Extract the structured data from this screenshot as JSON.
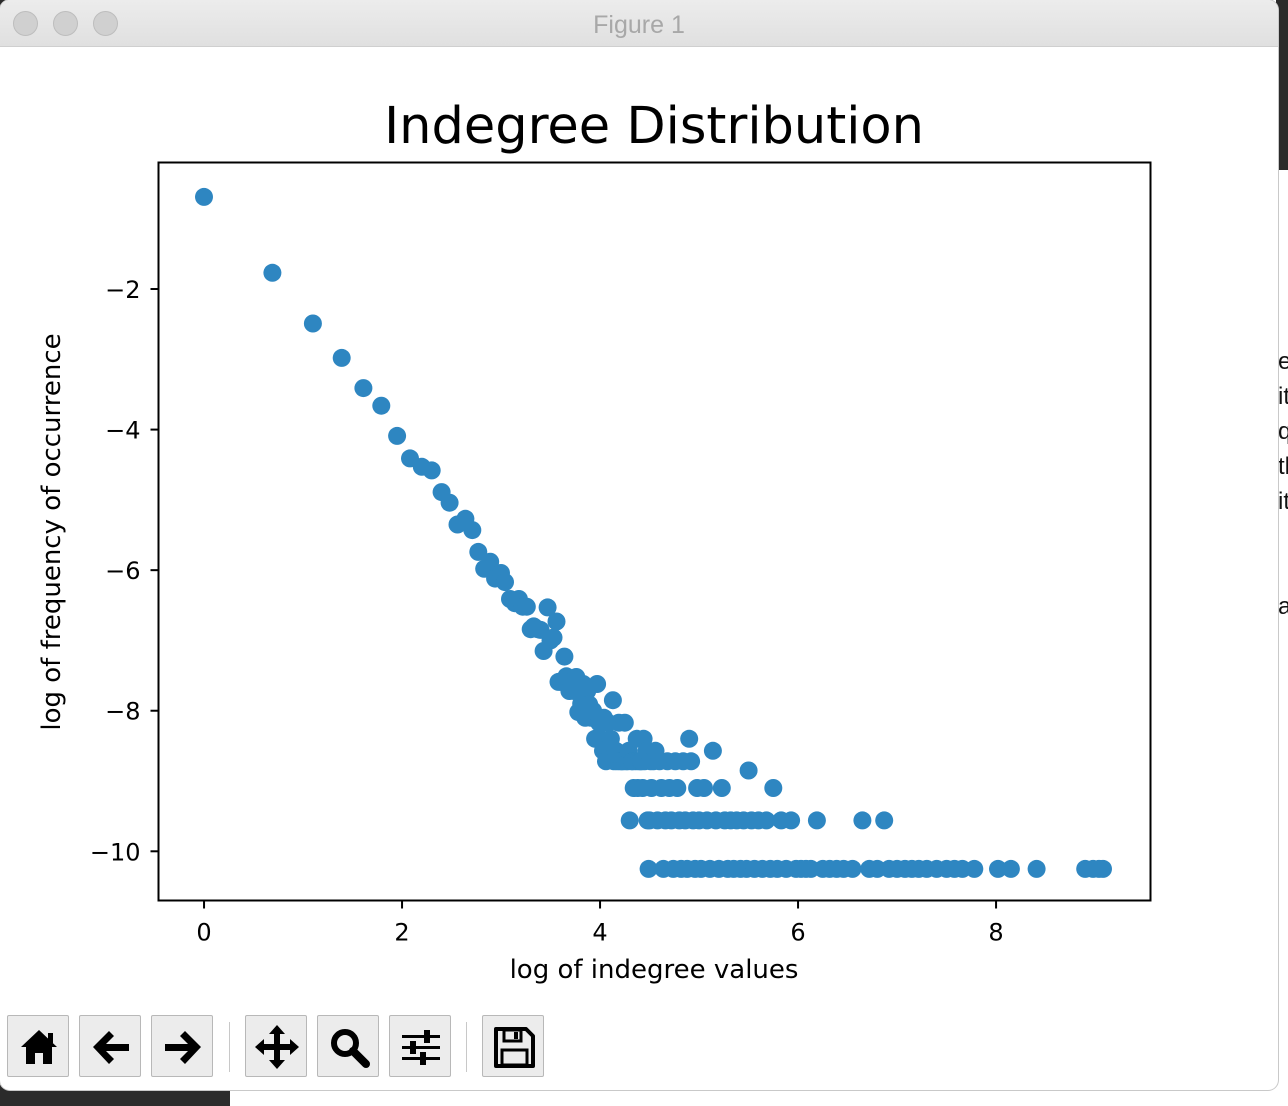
{
  "window": {
    "title": "Figure 1"
  },
  "background_window": {
    "visible_text_fragments": [
      "e",
      "it",
      "q",
      "th",
      "it",
      "a"
    ]
  },
  "toolbar": {
    "buttons": [
      {
        "id": "home",
        "icon": "home-icon"
      },
      {
        "id": "back",
        "icon": "arrow-left-icon"
      },
      {
        "id": "forward",
        "icon": "arrow-right-icon"
      },
      {
        "id": "pan",
        "icon": "move-icon"
      },
      {
        "id": "zoom",
        "icon": "magnifier-icon"
      },
      {
        "id": "configure",
        "icon": "sliders-icon"
      },
      {
        "id": "save",
        "icon": "floppy-disk-icon"
      }
    ]
  },
  "chart_data": {
    "type": "scatter",
    "title": "Indegree Distribution",
    "xlabel": "log of indegree values",
    "ylabel": "log of frequency of occurrence",
    "xlim": [
      -0.46,
      9.56
    ],
    "ylim": [
      -10.7,
      -0.2
    ],
    "xticks": [
      0,
      2,
      4,
      6,
      8
    ],
    "yticks": [
      -2,
      -4,
      -6,
      -8,
      -10
    ],
    "tick_labels": {
      "x": [
        "0",
        "2",
        "4",
        "6",
        "8"
      ],
      "y": [
        "−2",
        "−4",
        "−6",
        "−8",
        "−10"
      ]
    },
    "color": "#2e86c1",
    "grid": false,
    "points": [
      [
        0.0,
        -0.69
      ],
      [
        0.69,
        -1.77
      ],
      [
        1.1,
        -2.49
      ],
      [
        1.39,
        -2.98
      ],
      [
        1.61,
        -3.41
      ],
      [
        1.79,
        -3.66
      ],
      [
        1.95,
        -4.09
      ],
      [
        2.08,
        -4.41
      ],
      [
        2.2,
        -4.53
      ],
      [
        2.3,
        -4.58
      ],
      [
        2.4,
        -4.89
      ],
      [
        2.48,
        -5.04
      ],
      [
        2.56,
        -5.35
      ],
      [
        2.64,
        -5.27
      ],
      [
        2.71,
        -5.43
      ],
      [
        2.77,
        -5.74
      ],
      [
        2.83,
        -5.98
      ],
      [
        2.89,
        -5.88
      ],
      [
        2.94,
        -6.12
      ],
      [
        3.0,
        -6.04
      ],
      [
        3.04,
        -6.17
      ],
      [
        3.09,
        -6.41
      ],
      [
        3.14,
        -6.47
      ],
      [
        3.18,
        -6.41
      ],
      [
        3.22,
        -6.52
      ],
      [
        3.26,
        -6.52
      ],
      [
        3.3,
        -6.84
      ],
      [
        3.33,
        -6.8
      ],
      [
        3.37,
        -6.84
      ],
      [
        3.4,
        -6.85
      ],
      [
        3.43,
        -7.15
      ],
      [
        3.47,
        -6.53
      ],
      [
        3.5,
        -7.0
      ],
      [
        3.53,
        -6.96
      ],
      [
        3.56,
        -6.73
      ],
      [
        3.58,
        -7.59
      ],
      [
        3.61,
        -7.59
      ],
      [
        3.64,
        -7.23
      ],
      [
        3.66,
        -7.51
      ],
      [
        3.69,
        -7.72
      ],
      [
        3.71,
        -7.59
      ],
      [
        3.74,
        -7.72
      ],
      [
        3.76,
        -7.52
      ],
      [
        3.78,
        -8.02
      ],
      [
        3.81,
        -7.9
      ],
      [
        3.83,
        -7.62
      ],
      [
        3.85,
        -8.1
      ],
      [
        3.87,
        -7.72
      ],
      [
        3.89,
        -7.91
      ],
      [
        3.91,
        -8.1
      ],
      [
        3.93,
        -8.0
      ],
      [
        3.95,
        -8.4
      ],
      [
        3.97,
        -7.62
      ],
      [
        3.99,
        -8.17
      ],
      [
        4.01,
        -8.4
      ],
      [
        4.03,
        -8.57
      ],
      [
        4.04,
        -8.1
      ],
      [
        4.06,
        -8.72
      ],
      [
        4.08,
        -8.17
      ],
      [
        4.11,
        -8.4
      ],
      [
        4.13,
        -7.85
      ],
      [
        4.14,
        -8.72
      ],
      [
        4.16,
        -8.57
      ],
      [
        4.17,
        -8.72
      ],
      [
        4.19,
        -8.17
      ],
      [
        4.2,
        -8.72
      ],
      [
        4.22,
        -8.72
      ],
      [
        4.23,
        -8.72
      ],
      [
        4.25,
        -8.17
      ],
      [
        4.26,
        -8.72
      ],
      [
        4.28,
        -8.72
      ],
      [
        4.29,
        -8.57
      ],
      [
        4.3,
        -9.56
      ],
      [
        4.32,
        -8.72
      ],
      [
        4.33,
        -8.72
      ],
      [
        4.34,
        -9.1
      ],
      [
        4.36,
        -8.72
      ],
      [
        4.37,
        -8.4
      ],
      [
        4.38,
        -9.1
      ],
      [
        4.39,
        -8.72
      ],
      [
        4.41,
        -8.72
      ],
      [
        4.42,
        -8.72
      ],
      [
        4.43,
        -9.1
      ],
      [
        4.44,
        -8.4
      ],
      [
        4.45,
        -8.72
      ],
      [
        4.47,
        -8.57
      ],
      [
        4.48,
        -9.56
      ],
      [
        4.49,
        -10.25
      ],
      [
        4.5,
        -9.56
      ],
      [
        4.51,
        -8.72
      ],
      [
        4.52,
        -9.1
      ],
      [
        4.54,
        -8.72
      ],
      [
        4.56,
        -8.57
      ],
      [
        4.58,
        -9.56
      ],
      [
        4.6,
        -8.72
      ],
      [
        4.62,
        -9.1
      ],
      [
        4.64,
        -10.25
      ],
      [
        4.66,
        -9.56
      ],
      [
        4.68,
        -8.72
      ],
      [
        4.7,
        -9.1
      ],
      [
        4.72,
        -9.56
      ],
      [
        4.74,
        -10.25
      ],
      [
        4.76,
        -8.72
      ],
      [
        4.78,
        -9.1
      ],
      [
        4.8,
        -9.56
      ],
      [
        4.82,
        -10.25
      ],
      [
        4.84,
        -8.72
      ],
      [
        4.86,
        -9.56
      ],
      [
        4.88,
        -10.25
      ],
      [
        4.9,
        -8.4
      ],
      [
        4.92,
        -8.72
      ],
      [
        4.94,
        -9.56
      ],
      [
        4.96,
        -10.25
      ],
      [
        4.98,
        -9.1
      ],
      [
        5.0,
        -9.56
      ],
      [
        5.02,
        -10.25
      ],
      [
        5.05,
        -9.1
      ],
      [
        5.08,
        -9.56
      ],
      [
        5.11,
        -10.25
      ],
      [
        5.14,
        -8.57
      ],
      [
        5.17,
        -9.56
      ],
      [
        5.2,
        -10.25
      ],
      [
        5.23,
        -9.1
      ],
      [
        5.26,
        -9.56
      ],
      [
        5.29,
        -10.25
      ],
      [
        5.32,
        -9.56
      ],
      [
        5.35,
        -10.25
      ],
      [
        5.38,
        -9.56
      ],
      [
        5.42,
        -10.25
      ],
      [
        5.45,
        -9.56
      ],
      [
        5.48,
        -10.25
      ],
      [
        5.5,
        -8.85
      ],
      [
        5.53,
        -9.56
      ],
      [
        5.56,
        -10.25
      ],
      [
        5.6,
        -9.56
      ],
      [
        5.64,
        -10.25
      ],
      [
        5.68,
        -9.56
      ],
      [
        5.72,
        -10.25
      ],
      [
        5.75,
        -9.1
      ],
      [
        5.79,
        -10.25
      ],
      [
        5.83,
        -9.56
      ],
      [
        5.88,
        -10.25
      ],
      [
        5.93,
        -9.56
      ],
      [
        5.98,
        -10.25
      ],
      [
        6.03,
        -10.25
      ],
      [
        6.08,
        -10.25
      ],
      [
        6.13,
        -10.25
      ],
      [
        6.19,
        -9.56
      ],
      [
        6.25,
        -10.25
      ],
      [
        6.32,
        -10.25
      ],
      [
        6.39,
        -10.25
      ],
      [
        6.46,
        -10.25
      ],
      [
        6.55,
        -10.25
      ],
      [
        6.65,
        -9.56
      ],
      [
        6.72,
        -10.25
      ],
      [
        6.8,
        -10.25
      ],
      [
        6.87,
        -9.56
      ],
      [
        6.92,
        -10.25
      ],
      [
        7.0,
        -10.25
      ],
      [
        7.08,
        -10.25
      ],
      [
        7.15,
        -10.25
      ],
      [
        7.22,
        -10.25
      ],
      [
        7.3,
        -10.25
      ],
      [
        7.4,
        -10.25
      ],
      [
        7.5,
        -10.25
      ],
      [
        7.58,
        -10.25
      ],
      [
        7.66,
        -10.25
      ],
      [
        7.78,
        -10.25
      ],
      [
        8.02,
        -10.25
      ],
      [
        8.15,
        -10.25
      ],
      [
        8.41,
        -10.25
      ],
      [
        8.9,
        -10.25
      ],
      [
        8.98,
        -10.25
      ],
      [
        9.04,
        -10.25
      ],
      [
        9.08,
        -10.25
      ]
    ]
  }
}
